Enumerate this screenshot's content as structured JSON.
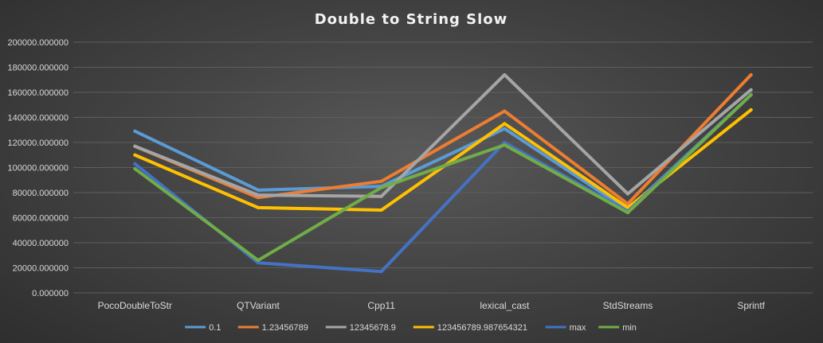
{
  "chart_data": {
    "type": "line",
    "title": "Double to String Slow",
    "xlabel": "",
    "ylabel": "",
    "categories": [
      "PocoDoubleToStr",
      "QTVariant",
      "Cpp11",
      "lexical_cast",
      "StdStreams",
      "Sprintf"
    ],
    "ylim": [
      0,
      200000
    ],
    "yticks": [
      0,
      20000,
      40000,
      60000,
      80000,
      100000,
      120000,
      140000,
      160000,
      180000,
      200000
    ],
    "ytick_labels": [
      "0.000000",
      "20000.000000",
      "40000.000000",
      "60000.000000",
      "80000.000000",
      "100000.000000",
      "120000.000000",
      "140000.000000",
      "160000.000000",
      "180000.000000",
      "200000.000000"
    ],
    "grid": true,
    "legend_position": "bottom",
    "series": [
      {
        "name": "0.1",
        "color": "#5b9bd5",
        "values": [
          129000,
          82000,
          85000,
          131000,
          66000,
          158000
        ]
      },
      {
        "name": "1.23456789",
        "color": "#ed7d31",
        "values": [
          117000,
          76000,
          89000,
          145000,
          71000,
          174000
        ]
      },
      {
        "name": "12345678.9",
        "color": "#a5a5a5",
        "values": [
          117000,
          78000,
          77000,
          174000,
          79000,
          162000
        ]
      },
      {
        "name": "123456789.987654321",
        "color": "#ffc000",
        "values": [
          110000,
          68000,
          66000,
          135000,
          68000,
          146000
        ]
      },
      {
        "name": "max",
        "color": "#4472c4",
        "values": [
          103000,
          24000,
          17000,
          120000,
          65000,
          158000
        ]
      },
      {
        "name": "min",
        "color": "#70ad47",
        "values": [
          99000,
          26000,
          84000,
          118000,
          64000,
          158000
        ]
      }
    ]
  }
}
